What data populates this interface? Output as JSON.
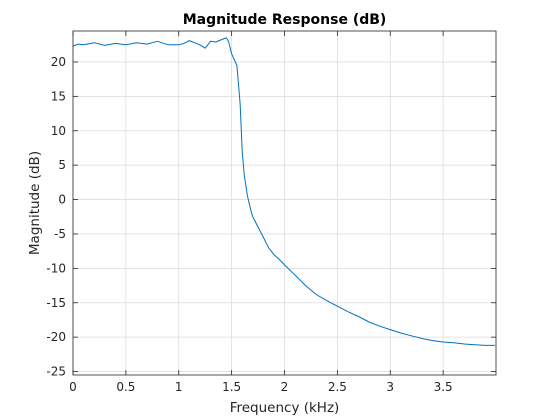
{
  "chart_data": {
    "type": "line",
    "title": "Magnitude Response (dB)",
    "xlabel": "Frequency (kHz)",
    "ylabel": "Magnitude (dB)",
    "xlim": [
      0,
      4.0
    ],
    "ylim": [
      -25.5,
      24.5
    ],
    "grid": true,
    "legend": "none",
    "x_ticks": [
      0,
      0.5,
      1,
      1.5,
      2,
      2.5,
      3,
      3.5
    ],
    "x_tick_labels": [
      "0",
      "0.5",
      "1",
      "1.5",
      "2",
      "2.5",
      "3",
      "3.5"
    ],
    "y_ticks": [
      -25,
      -20,
      -15,
      -10,
      -5,
      0,
      5,
      10,
      15,
      20
    ],
    "y_tick_labels": [
      "-25",
      "-20",
      "-15",
      "-10",
      "-5",
      "0",
      "5",
      "10",
      "15",
      "20"
    ],
    "colors": {
      "line": "#0072bd",
      "grid": "#dcdcdc",
      "axes": "#262626"
    },
    "series": [
      {
        "x": [
          0,
          0.05,
          0.1,
          0.2,
          0.3,
          0.4,
          0.5,
          0.6,
          0.7,
          0.8,
          0.9,
          1.0,
          1.05,
          1.1,
          1.15,
          1.2,
          1.25,
          1.3,
          1.35,
          1.4,
          1.45,
          1.47,
          1.5,
          1.52,
          1.55,
          1.58,
          1.6,
          1.62,
          1.65,
          1.68,
          1.7,
          1.75,
          1.8,
          1.85,
          1.9,
          1.95,
          2.0,
          2.1,
          2.2,
          2.3,
          2.4,
          2.5,
          2.6,
          2.7,
          2.8,
          2.9,
          3.0,
          3.1,
          3.2,
          3.3,
          3.4,
          3.5,
          3.6,
          3.7,
          3.8,
          3.9,
          3.99
        ],
        "y": [
          22.3,
          22.6,
          22.5,
          22.8,
          22.4,
          22.7,
          22.5,
          22.8,
          22.6,
          23.0,
          22.5,
          22.5,
          22.7,
          23.1,
          22.8,
          22.5,
          22.0,
          23.0,
          22.9,
          23.2,
          23.5,
          23.0,
          21.2,
          20.5,
          19.5,
          14.0,
          7.0,
          3.5,
          0.5,
          -1.5,
          -2.5,
          -4.0,
          -5.5,
          -7.0,
          -8.0,
          -8.7,
          -9.5,
          -11.0,
          -12.5,
          -13.8,
          -14.7,
          -15.5,
          -16.3,
          -17.0,
          -17.8,
          -18.4,
          -18.9,
          -19.4,
          -19.8,
          -20.2,
          -20.5,
          -20.7,
          -20.8,
          -21.0,
          -21.1,
          -21.2,
          -21.2
        ]
      }
    ]
  }
}
